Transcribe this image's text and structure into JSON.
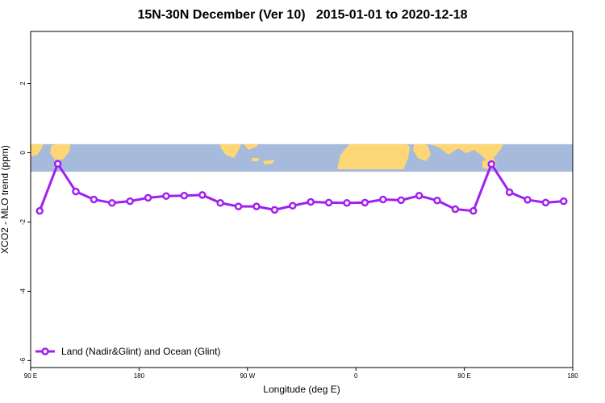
{
  "chart_data": {
    "type": "line",
    "title": "15N-30N December (Ver 10)   2015-01-01 to 2020-12-18",
    "xlabel": "Longitude (deg E)",
    "ylabel": "XCO2 - MLO trend (ppm)",
    "xlim": [
      90,
      540
    ],
    "ylim": [
      -6.2,
      3.5
    ],
    "x_ticks": [
      {
        "value": 90,
        "label": "90 E"
      },
      {
        "value": 180,
        "label": "180"
      },
      {
        "value": 270,
        "label": "90 W"
      },
      {
        "value": 360,
        "label": "0"
      },
      {
        "value": 450,
        "label": "90 E"
      },
      {
        "value": 540,
        "label": "180"
      }
    ],
    "y_ticks": [
      {
        "value": 2,
        "label": "2"
      },
      {
        "value": 0,
        "label": "0"
      },
      {
        "value": -2,
        "label": "-2"
      },
      {
        "value": -4,
        "label": "-4"
      },
      {
        "value": -6,
        "label": "-6"
      }
    ],
    "map_band_ylim": [
      -0.55,
      0.25
    ],
    "colors": {
      "line": "#a020f0",
      "ocean": "#a6bbdb",
      "land": "#fdd775"
    },
    "series": [
      {
        "name": "Land (Nadir&Glint) and Ocean (Glint)",
        "x": [
          97.5,
          112.5,
          127.5,
          142.5,
          157.5,
          172.5,
          187.5,
          202.5,
          217.5,
          232.5,
          247.5,
          262.5,
          277.5,
          292.5,
          307.5,
          322.5,
          337.5,
          352.5,
          367.5,
          382.5,
          397.5,
          412.5,
          427.5,
          442.5,
          457.5,
          472.5,
          487.5,
          502.5,
          517.5,
          532.5
        ],
        "values": [
          -1.68,
          -0.32,
          -1.12,
          -1.35,
          -1.45,
          -1.4,
          -1.3,
          -1.25,
          -1.24,
          -1.22,
          -1.45,
          -1.55,
          -1.55,
          -1.65,
          -1.53,
          -1.42,
          -1.44,
          -1.45,
          -1.44,
          -1.35,
          -1.37,
          -1.24,
          -1.38,
          -1.63,
          -1.68,
          -0.33,
          -1.14,
          -1.36,
          -1.44,
          -1.4
        ]
      }
    ],
    "legend_position": "bottom-left"
  }
}
